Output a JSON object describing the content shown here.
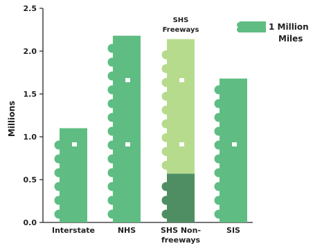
{
  "chart_data": {
    "type": "bar",
    "categories": [
      "Interstate",
      "NHS",
      "SHS Non-freeways",
      "SIS"
    ],
    "category_lines": [
      [
        "Interstate"
      ],
      [
        "NHS"
      ],
      [
        "SHS Non-",
        "freeways"
      ],
      [
        "SIS"
      ]
    ],
    "series": [
      {
        "values": [
          1.1,
          2.18,
          0.57,
          1.68
        ],
        "color": "#5fbd83"
      },
      {
        "name": "SHS Freeways",
        "values": [
          0,
          0,
          1.57,
          0
        ],
        "color": "#b7db8d"
      }
    ],
    "sis_dark_color": "#4f8e62",
    "annotation_lines": [
      "SHS",
      "Freeways"
    ],
    "ylabel": "Millions",
    "ylim": [
      0,
      2.5
    ],
    "yticks": [
      "0.0",
      "0.5",
      "1.0",
      "1.5",
      "2.0",
      "2.5"
    ],
    "legend": {
      "lines": [
        "1 Million",
        "Miles"
      ],
      "placement": "top-right"
    },
    "grid": false
  }
}
